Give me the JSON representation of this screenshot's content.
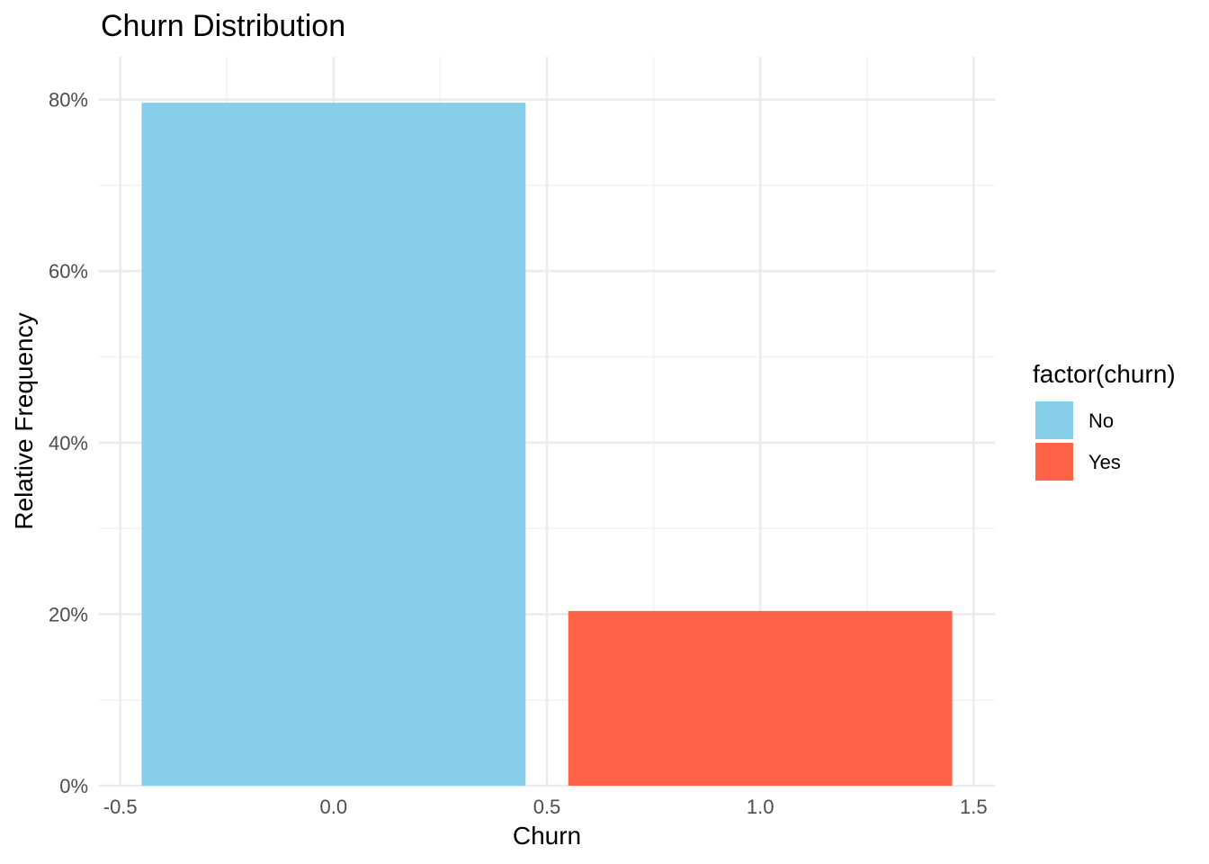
{
  "chart_data": {
    "type": "bar",
    "title": "Churn Distribution",
    "xlabel": "Churn",
    "ylabel": "Relative Frequency",
    "xlim": [
      -0.55,
      1.55
    ],
    "ylim": [
      0,
      0.85
    ],
    "x_ticks": [
      -0.5,
      0.0,
      0.5,
      1.0,
      1.5
    ],
    "x_tick_labels": [
      "-0.5",
      "0.0",
      "0.5",
      "1.0",
      "1.5"
    ],
    "y_ticks": [
      0,
      0.2,
      0.4,
      0.6,
      0.8
    ],
    "y_tick_labels": [
      "0%",
      "20%",
      "40%",
      "60%",
      "80%"
    ],
    "bar_width": 0.9,
    "bars": [
      {
        "x": 0,
        "value": 0.7963,
        "category": "No",
        "color": "#87CEEB"
      },
      {
        "x": 1,
        "value": 0.2037,
        "category": "Yes",
        "color": "#FF6347"
      }
    ],
    "legend": {
      "title": "factor(churn)",
      "position": "right",
      "entries": [
        {
          "label": "No",
          "color": "#87CEEB"
        },
        {
          "label": "Yes",
          "color": "#FF6347"
        }
      ]
    },
    "grid": true
  }
}
